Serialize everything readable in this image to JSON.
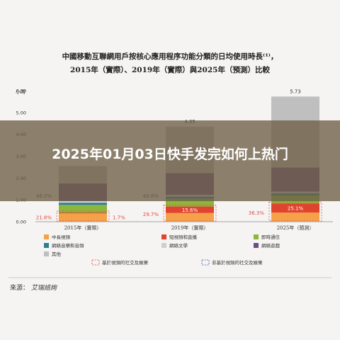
{
  "overlay": {
    "headline": "2025年01月03日快手发完如何上热门"
  },
  "figure": {
    "title_line1": "中國移動互聯網用戶按核心應用程序功能分類的日均使用時長⁽¹⁾，",
    "title_line2": "2015年（實際）、2019年（實際）與2025年（預測）比較",
    "source_label": "來源：",
    "source_value": "艾瑞諮詢"
  },
  "chart_data": {
    "type": "bar",
    "ylabel": "小時",
    "ylim": [
      0,
      6
    ],
    "y_ticks": [
      "0.00",
      "1.00",
      "2.00",
      "3.00",
      "4.00",
      "5.00",
      "6.00"
    ],
    "categories": [
      "2015年（實際）",
      "2019年（實際）",
      "2025年（預測）"
    ],
    "totals": [
      "",
      "4.35",
      "5.73"
    ],
    "left_brace_labels": [
      "21.8%",
      "29.7%",
      "36.3%"
    ],
    "right_brace_labels": [
      "1.7%",
      "15.6%",
      "25.1%"
    ],
    "mid_labels": [
      "46.0%",
      "40.6%",
      ""
    ],
    "series": [
      {
        "name": "中長視頻",
        "values": [
          0.38,
          0.4,
          0.42
        ]
      },
      {
        "name": "短視頻和直播",
        "values": [
          0.04,
          0.3,
          0.42
        ]
      },
      {
        "name": "即時通信",
        "values": [
          0.35,
          0.35,
          0.36
        ]
      },
      {
        "name": "網絡音樂和音頻",
        "values": [
          0.1,
          0.1,
          0.1
        ]
      },
      {
        "name": "網絡文學",
        "values": [
          0.08,
          0.08,
          0.08
        ]
      },
      {
        "name": "網絡遊戲",
        "values": [
          0.8,
          1.0,
          1.1
        ]
      },
      {
        "name": "其他",
        "values": [
          0.8,
          2.12,
          3.25
        ]
      }
    ],
    "colors": [
      "#f5a14a",
      "#e0442f",
      "#8cb63c",
      "#2f7e8f",
      "#c9cfd6",
      "#6d4d86",
      "#bfbfbf"
    ],
    "brace_legend": [
      "基於視頻的社交及娛樂",
      "非基於視頻的社交及娛樂"
    ],
    "brace_colors": [
      "#e04a4a",
      "#3a5fa8"
    ],
    "grid": false,
    "legend_position": "bottom"
  }
}
